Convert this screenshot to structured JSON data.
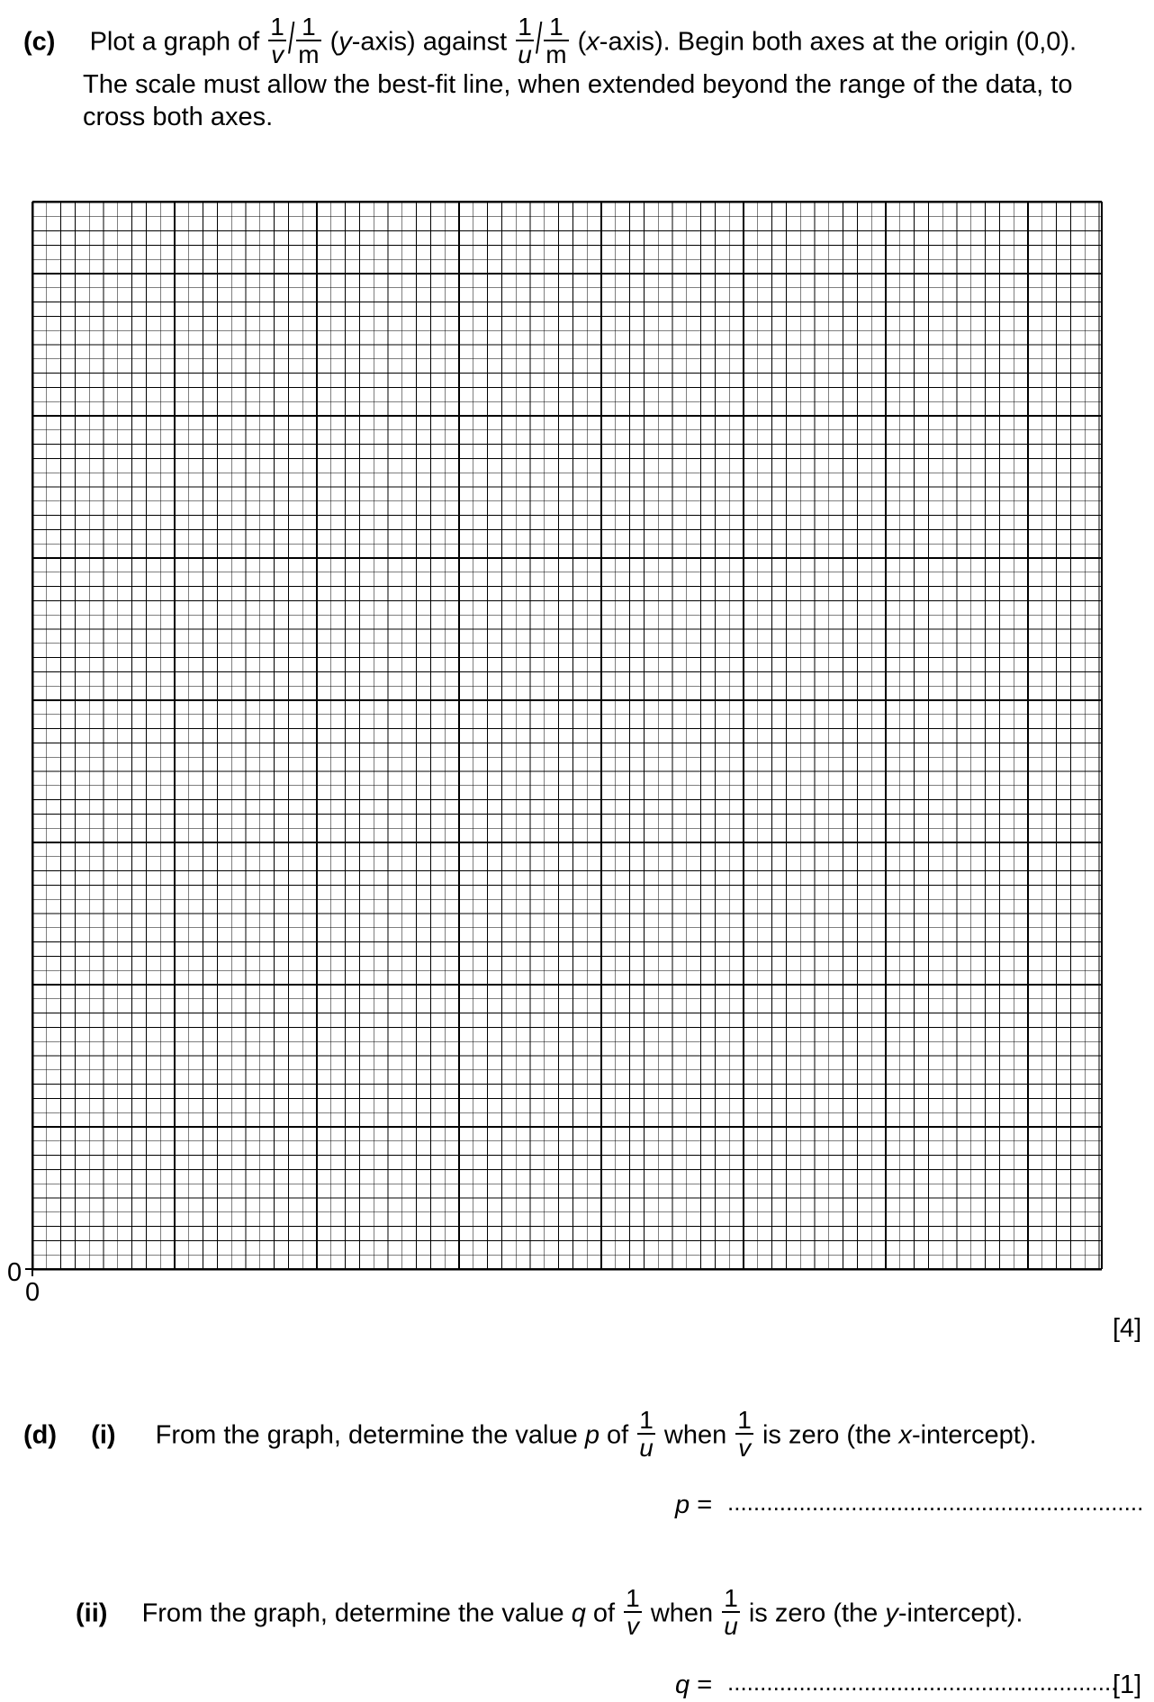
{
  "part_c": {
    "label": "(c)",
    "t1": "Plot a graph of",
    "one": "1",
    "v": "v",
    "u": "u",
    "m": "m",
    "t2": "(",
    "y": "y",
    "t3": "-axis) against",
    "t4": "(",
    "x": "x",
    "t5": "-axis). Begin both axes at the origin (0,0).",
    "line2": "The scale must allow the best-fit line, when extended beyond the range of the data, to",
    "line3": "cross both axes.",
    "marks": "[4]"
  },
  "grid": {
    "origin_y_label": "0",
    "origin_x_label": "0",
    "major_divisions_x": 7.5,
    "major_divisions_y": 7.5,
    "minor_per_major": 10
  },
  "part_d": {
    "label": "(d)",
    "i": {
      "label": "(i)",
      "t1": "From the graph, determine the value",
      "var": "p",
      "t2": "of",
      "t3": "when",
      "t4": "is zero (the",
      "x": "x",
      "t5": "-intercept).",
      "answer_label": "p",
      "eq": "="
    },
    "ii": {
      "label": "(ii)",
      "t1": "From the graph, determine the value",
      "var": "q",
      "t2": "of",
      "t3": "when",
      "t4": "is zero (the",
      "y": "y",
      "t5": "-intercept).",
      "answer_label": "q",
      "eq": "=",
      "marks": "[1]"
    }
  }
}
